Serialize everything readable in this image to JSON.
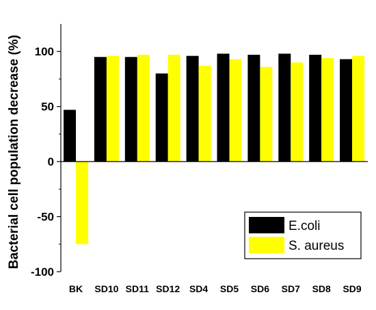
{
  "chart_data": {
    "type": "bar",
    "title": "",
    "xlabel": "",
    "ylabel": "Bacterial cell population decrease (%)",
    "categories": [
      "BK",
      "SD10",
      "SD11",
      "SD12",
      "SD4",
      "SD5",
      "SD6",
      "SD7",
      "SD8",
      "SD9"
    ],
    "series": [
      {
        "name": "E.coli",
        "color": "#000000",
        "values": [
          47,
          95,
          95,
          80,
          96,
          98,
          97,
          98,
          97,
          93
        ]
      },
      {
        "name": "S. aureus",
        "color": "#ffff00",
        "values": [
          -75,
          96,
          97,
          97,
          87,
          93,
          86,
          90,
          94,
          96
        ]
      }
    ],
    "ylim": [
      -100,
      125
    ],
    "yticks_major": [
      -100,
      -50,
      0,
      50,
      100
    ],
    "yticks_minor": [
      -75,
      -25,
      25,
      75
    ],
    "grid": false,
    "legend_position": "bottom-right"
  }
}
